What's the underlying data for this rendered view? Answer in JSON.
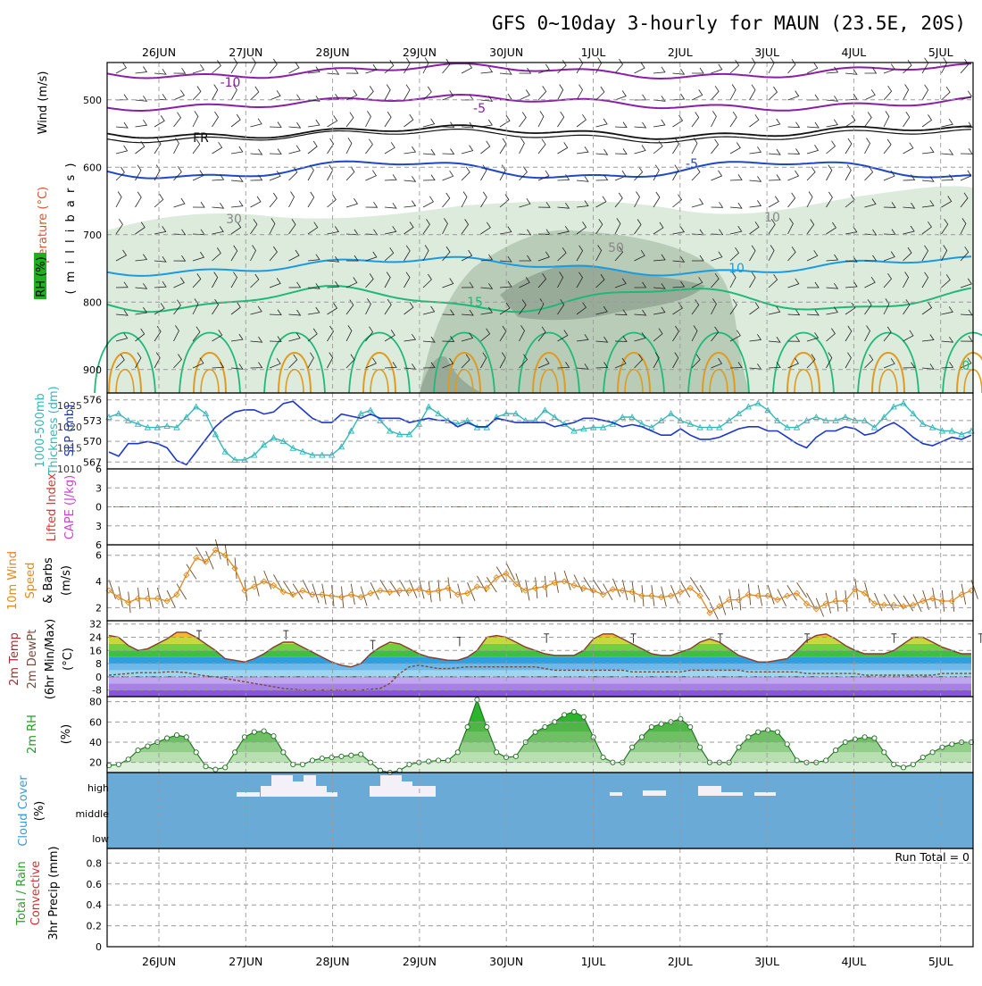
{
  "chart_data": {
    "type": "meteogram",
    "title": "GFS 0~10day 3-hourly for MAUN (23.5E, 20S)",
    "dates": [
      "26JUN",
      "27JUN",
      "28JUN",
      "29JUN",
      "30JUN",
      "1JUL",
      "2JUL",
      "3JUL",
      "4JUL",
      "5JUL"
    ],
    "colors": {
      "frame": "#000000",
      "grid": "#9a9a9a",
      "rh_fill_light": "#dcebdc",
      "rh_fill_mid": "#b8ccb8",
      "rh_fill_dark": "#98ab98",
      "temp_minus10": "#8a1fa6",
      "temp_freezing": "#111111",
      "temp_minus5": "#1f48c8",
      "temp_10": "#1a9be0",
      "temp_15": "#20b878",
      "temp_warm": "#e09a20",
      "slp": "#1c36c8",
      "thickness": "#33b8b8",
      "wind_speed": "#e08a1e",
      "wind_barb": "#6b4a2a",
      "temp_band": "#2eaa2e",
      "rh2m_fill": "#43b843",
      "cloud_bg": "#6aaad6",
      "cloud_patch": "#f4f0f8",
      "li_zero": "#dd3333"
    },
    "panels": [
      {
        "id": "upper_air",
        "ylabels": [
          "Temperature (°C)",
          "Wind (m/s)",
          "RH (%)",
          "( m i l l i b a r s )"
        ],
        "yticks": [
          500,
          600,
          700,
          800,
          900
        ],
        "contour_labels": [
          "-10",
          "-5",
          "FR",
          "-5",
          "10",
          "15",
          "30",
          "50",
          "10",
          "0"
        ]
      },
      {
        "id": "slp_thickness",
        "ylabels": [
          "1000-500mb",
          "Thickness (dm)",
          "SLP (mb)"
        ],
        "left_ticks": [
          567,
          570,
          573,
          576
        ],
        "right_ticks": [
          1010,
          1015,
          1020,
          1025
        ],
        "slp": [
          1014,
          1013,
          1016,
          1016,
          1016.5,
          1016,
          1015,
          1012,
          1011,
          1014,
          1017,
          1020,
          1022,
          1023.5,
          1024,
          1024,
          1023,
          1023.5,
          1025.5,
          1026,
          1024,
          1022,
          1021,
          1021,
          1023,
          1022.5,
          1022,
          1023,
          1022,
          1022,
          1022,
          1021,
          1021.5,
          1022,
          1021.5,
          1021.5,
          1020,
          1021,
          1020,
          1020,
          1022,
          1021.5,
          1021,
          1021,
          1021,
          1021,
          1020,
          1020.5,
          1021,
          1022,
          1022,
          1021.5,
          1021,
          1020,
          1020.5,
          1020,
          1019,
          1018,
          1018,
          1019.5,
          1018,
          1017,
          1017,
          1017.5,
          1018.5,
          1019.5,
          1020,
          1020,
          1019,
          1019,
          1017.5,
          1016,
          1015,
          1017.5,
          1019,
          1019,
          1020,
          1019.5,
          1018,
          1018.5,
          1020,
          1021,
          1019.5,
          1017.5,
          1016,
          1015.5,
          1016.5,
          1017.5,
          1017,
          1018
        ],
        "thickness": [
          573.5,
          574,
          573,
          572.5,
          572,
          572,
          572.2,
          572,
          573.5,
          575,
          574,
          571,
          568.5,
          567.3,
          567.3,
          568,
          569.5,
          570.5,
          570,
          569,
          568.5,
          568,
          568,
          568,
          569.2,
          571.5,
          574,
          574.5,
          573,
          571.5,
          571,
          571,
          572.5,
          575,
          574,
          573,
          572.5,
          573,
          572,
          572,
          573.5,
          574,
          574,
          573,
          573,
          574.5,
          573.5,
          572.5,
          571.5,
          571.8,
          572,
          572,
          572.5,
          573.5,
          573.5,
          572.5,
          572,
          573,
          574,
          573,
          572.5,
          572,
          572,
          572,
          573,
          574,
          575,
          575.5,
          574.5,
          573,
          572,
          572,
          573,
          573.5,
          573,
          573,
          573.5,
          573,
          573,
          572,
          573.5,
          575,
          575.5,
          574,
          572.5,
          572,
          571.5,
          571.5,
          571,
          571.5
        ]
      },
      {
        "id": "cape_li",
        "ylabels": [
          "Lifted Index",
          "CAPE (J/kg)"
        ],
        "yticks": [
          6,
          3,
          0,
          -3,
          -6
        ]
      },
      {
        "id": "wind10m",
        "ylabels": [
          "10m Wind",
          "Speed",
          "& Barbs",
          "(m/s)"
        ],
        "yticks": [
          2,
          4,
          6
        ],
        "speed": [
          3.3,
          2.8,
          2.4,
          2.7,
          2.7,
          2.7,
          2.5,
          3,
          4.5,
          5.8,
          5.5,
          6.4,
          6,
          5,
          3.3,
          3.6,
          4,
          3.7,
          3.2,
          3,
          3.3,
          3,
          3,
          2.9,
          2.8,
          3,
          2.8,
          3.1,
          3.3,
          3.2,
          3.3,
          3.3,
          3.4,
          3.2,
          3.3,
          3.5,
          3,
          3.1,
          3.6,
          3.5,
          4.3,
          4.6,
          3.8,
          3.3,
          3.5,
          3.6,
          3.9,
          4,
          3.7,
          3.5,
          3.3,
          3,
          3.4,
          3.3,
          3.2,
          2.9,
          2.9,
          2.8,
          2.9,
          3.2,
          3.5,
          2.9,
          1.6,
          2.1,
          2.6,
          2.6,
          3,
          2.9,
          2.9,
          2.6,
          2.9,
          3.1,
          2.3,
          1.9,
          2.3,
          2.5,
          2.5,
          3.4,
          3.1,
          2.3,
          2.2,
          2.2,
          2.1,
          2.2,
          2.5,
          2.7,
          2.5,
          2.5,
          3,
          3.3
        ]
      },
      {
        "id": "temp2m",
        "ylabels": [
          "2m Temp",
          "2m DewPt",
          "(6hr Min/Max)",
          "(°C)"
        ],
        "yticks": [
          32,
          24,
          16,
          8,
          0,
          -8
        ],
        "temp": [
          25,
          24,
          19,
          16,
          17,
          20,
          23,
          27,
          27,
          24,
          20,
          16,
          11,
          10,
          9,
          11,
          14,
          18,
          21,
          21,
          18,
          15,
          12,
          9,
          7,
          6,
          8,
          14,
          18,
          21,
          20,
          17,
          14,
          12,
          11,
          10,
          10,
          12,
          16,
          24,
          25,
          24,
          21,
          18,
          16,
          14,
          13,
          13,
          13,
          16,
          23,
          26,
          26,
          23,
          20,
          17,
          14,
          13,
          13,
          15,
          17,
          21,
          23,
          21,
          17,
          13,
          11,
          9,
          9,
          10,
          11,
          16,
          22,
          25,
          26,
          23,
          19,
          16,
          14,
          14,
          14,
          16,
          20,
          24,
          24,
          21,
          18,
          16,
          14,
          14
        ],
        "dewpt": [
          1,
          1.5,
          2,
          2.5,
          2.5,
          2.5,
          3,
          3,
          2.5,
          1.5,
          0.5,
          0,
          -1,
          -2,
          -3,
          -4,
          -5,
          -6,
          -7,
          -7.5,
          -8,
          -8,
          -8,
          -8,
          -8,
          -8,
          -8,
          -7.5,
          -7,
          -4,
          2,
          6,
          7,
          6,
          5,
          5,
          5.5,
          6,
          6,
          6,
          6,
          6,
          6,
          6,
          6,
          5,
          4,
          4,
          4,
          4,
          4,
          4,
          4,
          4,
          3,
          3,
          3,
          3,
          3,
          3,
          4,
          4,
          4,
          4,
          4,
          4,
          3,
          3,
          3,
          3,
          3,
          3,
          2,
          2,
          2,
          2,
          2,
          2,
          1,
          1,
          1,
          1,
          1,
          1,
          1,
          1,
          2,
          2,
          2,
          2
        ],
        "max_markers": [
          28,
          28,
          22,
          24,
          26,
          26,
          26,
          26,
          26,
          26
        ]
      },
      {
        "id": "rh2m",
        "ylabels": [
          "2m RH",
          "(%)"
        ],
        "yticks": [
          20,
          40,
          60,
          80
        ],
        "rh": [
          17,
          18,
          23,
          32,
          36,
          40,
          44,
          47,
          45,
          30,
          16,
          13,
          15,
          30,
          45,
          50,
          51,
          46,
          30,
          18,
          18,
          22,
          24,
          25,
          26,
          27,
          28,
          20,
          12,
          10,
          12,
          18,
          20,
          21,
          22,
          22,
          30,
          55,
          82,
          55,
          30,
          25,
          26,
          40,
          50,
          55,
          60,
          67,
          70,
          65,
          45,
          25,
          20,
          20,
          35,
          45,
          55,
          58,
          60,
          63,
          55,
          35,
          20,
          20,
          20,
          35,
          45,
          50,
          52,
          50,
          38,
          22,
          20,
          20,
          22,
          32,
          40,
          43,
          45,
          44,
          30,
          18,
          15,
          18,
          25,
          30,
          35,
          38,
          40,
          40
        ],
        "rh_tail": [
          34,
          30,
          25,
          20,
          16,
          16,
          20,
          26,
          30,
          35,
          38,
          40,
          40,
          38,
          30,
          20,
          15,
          16,
          22,
          28,
          32,
          35,
          38,
          42,
          46
        ]
      },
      {
        "id": "cloud",
        "ylabels": [
          "Cloud Cover",
          "(%)"
        ],
        "levels": [
          "high",
          "middle",
          "low"
        ]
      },
      {
        "id": "precip",
        "ylabels": [
          "Total / Rain",
          "Convective",
          "3hr Precip (mm)"
        ],
        "yticks": [
          0,
          0.2,
          0.4,
          0.6,
          0.8
        ],
        "run_total_label": "Run Total = 0"
      }
    ]
  }
}
